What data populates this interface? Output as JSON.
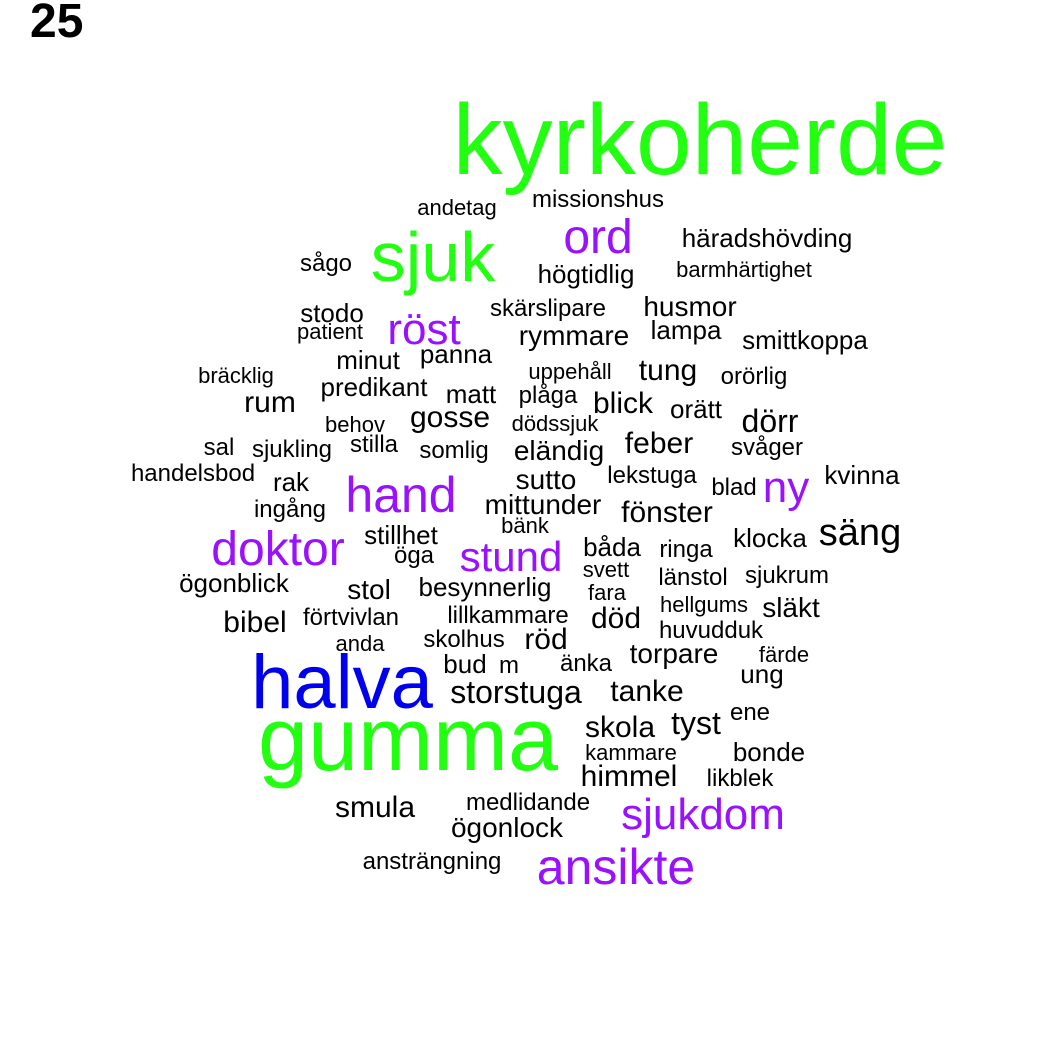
{
  "panel_number": "25",
  "palette": {
    "green": "#22ff11",
    "blue": "#0000ee",
    "purple": "#9911ff",
    "black": "#000000"
  },
  "words": [
    {
      "text": "kyrkoherde",
      "color": "green"
    },
    {
      "text": "gumma",
      "color": "green"
    },
    {
      "text": "halva",
      "color": "blue"
    },
    {
      "text": "sjuk",
      "color": "green"
    },
    {
      "text": "ord",
      "color": "purple"
    },
    {
      "text": "röst",
      "color": "purple"
    },
    {
      "text": "hand",
      "color": "purple"
    },
    {
      "text": "ny",
      "color": "purple"
    },
    {
      "text": "doktor",
      "color": "purple"
    },
    {
      "text": "stund",
      "color": "purple"
    },
    {
      "text": "sjukdom",
      "color": "purple"
    },
    {
      "text": "ansikte",
      "color": "purple"
    },
    {
      "text": "andetag",
      "color": "black"
    },
    {
      "text": "missionshus",
      "color": "black"
    },
    {
      "text": "häradshövding",
      "color": "black"
    },
    {
      "text": "sågo",
      "color": "black"
    },
    {
      "text": "högtidlig",
      "color": "black"
    },
    {
      "text": "barmhärtighet",
      "color": "black"
    },
    {
      "text": "stodo",
      "color": "black"
    },
    {
      "text": "skärslipare",
      "color": "black"
    },
    {
      "text": "husmor",
      "color": "black"
    },
    {
      "text": "patient",
      "color": "black"
    },
    {
      "text": "rymmare",
      "color": "black"
    },
    {
      "text": "lampa",
      "color": "black"
    },
    {
      "text": "smittkoppa",
      "color": "black"
    },
    {
      "text": "minut",
      "color": "black"
    },
    {
      "text": "panna",
      "color": "black"
    },
    {
      "text": "bräcklig",
      "color": "black"
    },
    {
      "text": "uppehåll",
      "color": "black"
    },
    {
      "text": "tung",
      "color": "black"
    },
    {
      "text": "orörlig",
      "color": "black"
    },
    {
      "text": "predikant",
      "color": "black"
    },
    {
      "text": "rum",
      "color": "black"
    },
    {
      "text": "matt",
      "color": "black"
    },
    {
      "text": "plåga",
      "color": "black"
    },
    {
      "text": "blick",
      "color": "black"
    },
    {
      "text": "orätt",
      "color": "black"
    },
    {
      "text": "behov",
      "color": "black"
    },
    {
      "text": "gosse",
      "color": "black"
    },
    {
      "text": "dödssjuk",
      "color": "black"
    },
    {
      "text": "dörr",
      "color": "black"
    },
    {
      "text": "sal",
      "color": "black"
    },
    {
      "text": "sjukling",
      "color": "black"
    },
    {
      "text": "stilla",
      "color": "black"
    },
    {
      "text": "somlig",
      "color": "black"
    },
    {
      "text": "eländig",
      "color": "black"
    },
    {
      "text": "feber",
      "color": "black"
    },
    {
      "text": "svåger",
      "color": "black"
    },
    {
      "text": "handelsbod",
      "color": "black"
    },
    {
      "text": "rak",
      "color": "black"
    },
    {
      "text": "sutto",
      "color": "black"
    },
    {
      "text": "lekstuga",
      "color": "black"
    },
    {
      "text": "kvinna",
      "color": "black"
    },
    {
      "text": "blad",
      "color": "black"
    },
    {
      "text": "ingång",
      "color": "black"
    },
    {
      "text": "mittunder",
      "color": "black"
    },
    {
      "text": "fönster",
      "color": "black"
    },
    {
      "text": "bänk",
      "color": "black"
    },
    {
      "text": "stillhet",
      "color": "black"
    },
    {
      "text": "säng",
      "color": "black"
    },
    {
      "text": "klocka",
      "color": "black"
    },
    {
      "text": "öga",
      "color": "black"
    },
    {
      "text": "båda",
      "color": "black"
    },
    {
      "text": "ringa",
      "color": "black"
    },
    {
      "text": "svett",
      "color": "black"
    },
    {
      "text": "ögonblick",
      "color": "black"
    },
    {
      "text": "länstol",
      "color": "black"
    },
    {
      "text": "sjukrum",
      "color": "black"
    },
    {
      "text": "stol",
      "color": "black"
    },
    {
      "text": "besynnerlig",
      "color": "black"
    },
    {
      "text": "fara",
      "color": "black"
    },
    {
      "text": "hellgums",
      "color": "black"
    },
    {
      "text": "släkt",
      "color": "black"
    },
    {
      "text": "bibel",
      "color": "black"
    },
    {
      "text": "förtvivlan",
      "color": "black"
    },
    {
      "text": "lillkammare",
      "color": "black"
    },
    {
      "text": "död",
      "color": "black"
    },
    {
      "text": "huvudduk",
      "color": "black"
    },
    {
      "text": "anda",
      "color": "black"
    },
    {
      "text": "skolhus",
      "color": "black"
    },
    {
      "text": "röd",
      "color": "black"
    },
    {
      "text": "torpare",
      "color": "black"
    },
    {
      "text": "färde",
      "color": "black"
    },
    {
      "text": "bud",
      "color": "black"
    },
    {
      "text": "m",
      "color": "black"
    },
    {
      "text": "änka",
      "color": "black"
    },
    {
      "text": "ung",
      "color": "black"
    },
    {
      "text": "storstuga",
      "color": "black"
    },
    {
      "text": "tanke",
      "color": "black"
    },
    {
      "text": "skola",
      "color": "black"
    },
    {
      "text": "tyst",
      "color": "black"
    },
    {
      "text": "ene",
      "color": "black"
    },
    {
      "text": "kammare",
      "color": "black"
    },
    {
      "text": "bonde",
      "color": "black"
    },
    {
      "text": "himmel",
      "color": "black"
    },
    {
      "text": "likblek",
      "color": "black"
    },
    {
      "text": "smula",
      "color": "black"
    },
    {
      "text": "medlidande",
      "color": "black"
    },
    {
      "text": "ögonlock",
      "color": "black"
    },
    {
      "text": "ansträngning",
      "color": "black"
    }
  ]
}
